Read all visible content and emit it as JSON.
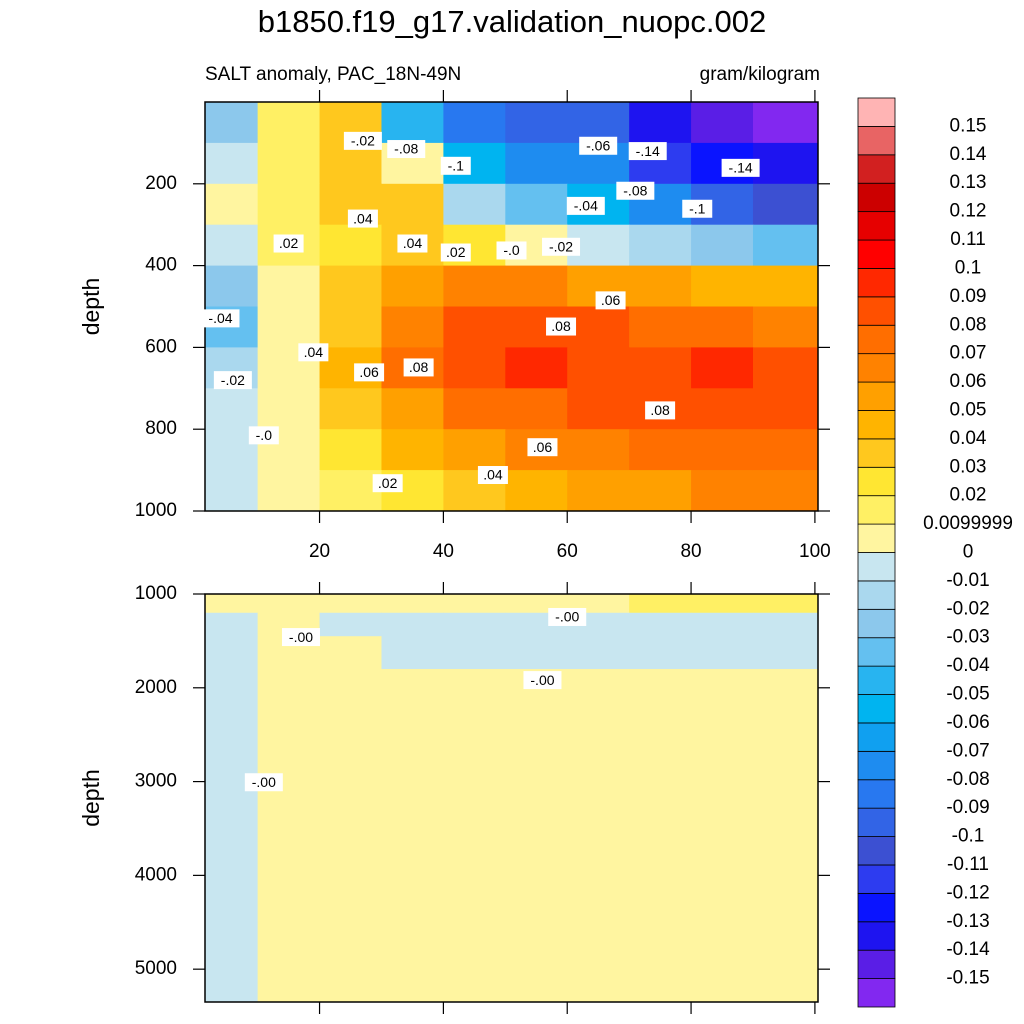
{
  "title": "b1850.f19_g17.validation_nuopc.002",
  "colorbar": {
    "levels": [
      -0.15,
      -0.14,
      -0.13,
      -0.12,
      -0.11,
      -0.1,
      -0.09,
      -0.08,
      -0.07,
      -0.06,
      -0.05,
      -0.04,
      -0.03,
      -0.02,
      -0.01,
      0,
      0.0099999,
      0.02,
      0.03,
      0.04,
      0.05,
      0.06,
      0.07,
      0.08,
      0.09,
      0.1,
      0.11,
      0.12,
      0.13,
      0.14,
      0.15
    ],
    "colors": [
      "#8228f0",
      "#5a1ee6",
      "#1e14f0",
      "#0a14ff",
      "#2d3cf0",
      "#3c50d2",
      "#3264e6",
      "#2878f0",
      "#1e8cf0",
      "#10a0f0",
      "#00b4f0",
      "#28b4f0",
      "#64c0f0",
      "#8cc8ec",
      "#aad8ee",
      "#c8e6f0",
      "#fff5a0",
      "#fff064",
      "#ffe632",
      "#ffc81e",
      "#ffb400",
      "#ffa000",
      "#ff8200",
      "#ff6e00",
      "#ff5000",
      "#ff2800",
      "#ff0000",
      "#e60000",
      "#cc0000",
      "#d22020",
      "#e86464",
      "#ffb4b4"
    ]
  },
  "chart_data": [
    {
      "type": "contour",
      "subtitle_left": "SALT anomaly, PAC_18N-49N",
      "subtitle_right": "gram/kilogram",
      "ylabel": "depth",
      "xlim": [
        1.5,
        100.5
      ],
      "xticks": [
        20,
        40,
        60,
        80,
        100
      ],
      "ylim": [
        0,
        1000
      ],
      "yticks": [
        200,
        400,
        600,
        800,
        1000
      ],
      "x": [
        5,
        15,
        25,
        35,
        45,
        55,
        65,
        75,
        85,
        95
      ],
      "depth": [
        50,
        150,
        250,
        350,
        450,
        550,
        650,
        750,
        850,
        950
      ],
      "values": [
        [
          -0.03,
          0.015,
          0.03,
          -0.05,
          -0.09,
          -0.1,
          -0.1,
          -0.14,
          -0.15,
          -0.16
        ],
        [
          -0.01,
          0.015,
          0.03,
          0,
          -0.06,
          -0.08,
          -0.08,
          -0.12,
          -0.13,
          -0.14
        ],
        [
          0,
          0.015,
          0.035,
          0.03,
          -0.02,
          -0.04,
          -0.06,
          -0.08,
          -0.1,
          -0.11
        ],
        [
          -0.01,
          0.01,
          0.025,
          0.035,
          0.025,
          0.005,
          -0.01,
          -0.02,
          -0.03,
          -0.04
        ],
        [
          -0.03,
          0.005,
          0.03,
          0.05,
          0.06,
          0.06,
          0.055,
          0.05,
          0.045,
          0.04
        ],
        [
          -0.04,
          0.005,
          0.035,
          0.065,
          0.085,
          0.085,
          0.08,
          0.075,
          0.07,
          0.065
        ],
        [
          -0.02,
          0.005,
          0.04,
          0.07,
          0.085,
          0.09,
          0.085,
          0.085,
          0.09,
          0.085
        ],
        [
          -0.01,
          0.005,
          0.035,
          0.055,
          0.07,
          0.075,
          0.08,
          0.08,
          0.085,
          0.08
        ],
        [
          -0.005,
          0.005,
          0.025,
          0.04,
          0.05,
          0.06,
          0.065,
          0.07,
          0.07,
          0.07
        ],
        [
          -0.005,
          0.005,
          0.015,
          0.025,
          0.035,
          0.045,
          0.05,
          0.055,
          0.06,
          0.065
        ]
      ],
      "contour_labels": [
        {
          "value": -0.02,
          "label": "-.02",
          "x": 27,
          "depth": 95
        },
        {
          "value": -0.08,
          "label": "-.08",
          "x": 34,
          "depth": 115
        },
        {
          "value": -0.1,
          "label": "-.1",
          "x": 42,
          "depth": 156
        },
        {
          "value": -0.06,
          "label": "-.06",
          "x": 65,
          "depth": 107
        },
        {
          "value": -0.14,
          "label": "-.14",
          "x": 73,
          "depth": 120
        },
        {
          "value": -0.14,
          "label": "-.14",
          "x": 88,
          "depth": 161
        },
        {
          "value": -0.08,
          "label": "-.08",
          "x": 71,
          "depth": 217
        },
        {
          "value": -0.04,
          "label": "-.04",
          "x": 63,
          "depth": 254
        },
        {
          "value": -0.1,
          "label": "-.1",
          "x": 81,
          "depth": 261
        },
        {
          "value": 0.04,
          "label": ".04",
          "x": 27,
          "depth": 285
        },
        {
          "value": 0.02,
          "label": ".02",
          "x": 15,
          "depth": 346
        },
        {
          "value": 0.04,
          "label": ".04",
          "x": 35,
          "depth": 346
        },
        {
          "value": 0.02,
          "label": ".02",
          "x": 42,
          "depth": 368
        },
        {
          "value": 0,
          "label": "-.0",
          "x": 51,
          "depth": 363
        },
        {
          "value": -0.02,
          "label": "-.02",
          "x": 59,
          "depth": 354
        },
        {
          "value": 0.06,
          "label": ".06",
          "x": 67,
          "depth": 485
        },
        {
          "value": -0.04,
          "label": "-.04",
          "x": 4,
          "depth": 529
        },
        {
          "value": 0.08,
          "label": ".08",
          "x": 59,
          "depth": 549
        },
        {
          "value": 0.04,
          "label": ".04",
          "x": 19,
          "depth": 612
        },
        {
          "value": 0.08,
          "label": ".08",
          "x": 36,
          "depth": 649
        },
        {
          "value": 0.06,
          "label": ".06",
          "x": 28,
          "depth": 661
        },
        {
          "value": -0.02,
          "label": "-.02",
          "x": 6,
          "depth": 680
        },
        {
          "value": 0.08,
          "label": ".08",
          "x": 75,
          "depth": 754
        },
        {
          "value": 0,
          "label": "-.0",
          "x": 11,
          "depth": 815
        },
        {
          "value": 0.06,
          "label": ".06",
          "x": 56,
          "depth": 844
        },
        {
          "value": 0.04,
          "label": ".04",
          "x": 48,
          "depth": 912
        },
        {
          "value": 0.02,
          "label": ".02",
          "x": 31,
          "depth": 932
        }
      ]
    },
    {
      "type": "contour",
      "ylabel": "depth",
      "xlim": [
        1.5,
        100.5
      ],
      "ylim": [
        1000,
        5350
      ],
      "yticks": [
        1000,
        2000,
        3000,
        4000,
        5000
      ],
      "x": [
        5,
        15,
        25,
        35,
        45,
        55,
        65,
        75,
        85,
        95
      ],
      "depth": [
        1100,
        1300,
        1600,
        2000,
        3000,
        4000,
        5000
      ],
      "values": [
        [
          0.005,
          0.005,
          0.005,
          0.005,
          0.005,
          0.005,
          0.008,
          0.012,
          0.015,
          0.018
        ],
        [
          -0.005,
          0.005,
          -0.005,
          -0.005,
          -0.005,
          -0.005,
          -0.005,
          -0.005,
          -0.005,
          -0.005
        ],
        [
          -0.005,
          0.005,
          0.005,
          -0.005,
          -0.005,
          -0.005,
          -0.005,
          -0.005,
          -0.005,
          -0.005
        ],
        [
          -0.005,
          0.005,
          0.005,
          0.005,
          0.005,
          0.005,
          0.005,
          0.005,
          0.005,
          0.005
        ],
        [
          -0.005,
          0.005,
          0.005,
          0.005,
          0.005,
          0.005,
          0.005,
          0.005,
          0.005,
          0.005
        ],
        [
          -0.005,
          0.005,
          0.005,
          0.005,
          0.005,
          0.005,
          0.005,
          0.005,
          0.005,
          0.005
        ],
        [
          -0.005,
          0.005,
          0.005,
          0.005,
          0.005,
          0.005,
          0.005,
          0.005,
          0.005,
          0.005
        ]
      ],
      "contour_labels": [
        {
          "value": 0,
          "label": "-.00",
          "x": 60,
          "depth": 1245
        },
        {
          "value": 0,
          "label": "-.00",
          "x": 17,
          "depth": 1459
        },
        {
          "value": 0,
          "label": "-.00",
          "x": 56,
          "depth": 1918
        },
        {
          "value": 0,
          "label": "-.00",
          "x": 11,
          "depth": 3007
        }
      ]
    }
  ]
}
